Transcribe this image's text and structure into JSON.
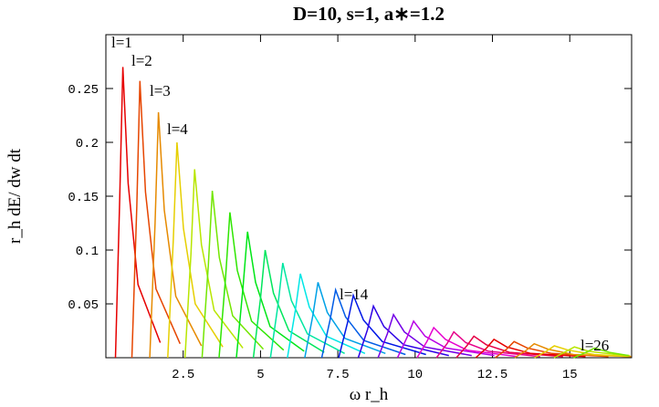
{
  "chart_data": {
    "type": "line",
    "title": "D=10, s=1, a∗=1.2",
    "x_label": "ω r_h",
    "y_label": "r_h dE/ dw dt",
    "xlim": [
      0,
      17
    ],
    "ylim": [
      0,
      0.3
    ],
    "xticks": [
      2.5,
      5,
      7.5,
      10,
      12.5,
      15
    ],
    "yticks": [
      0.05,
      0.1,
      0.15,
      0.2,
      0.25
    ],
    "grid": false,
    "annotations": [
      "l=1",
      "l=2",
      "l=3",
      "l=4",
      "l=14",
      "l=26"
    ],
    "series": [
      {
        "color": "#e60000",
        "x": [
          0.31,
          0.45,
          0.55,
          0.72,
          1.04,
          1.76
        ],
        "values": [
          0,
          0.149,
          0.27,
          0.162,
          0.068,
          0.014
        ]
      },
      {
        "color": "#e64500",
        "x": [
          0.84,
          1.0,
          1.1,
          1.28,
          1.62,
          2.4
        ],
        "values": [
          0,
          0.141,
          0.257,
          0.154,
          0.064,
          0.013
        ]
      },
      {
        "color": "#e68a00",
        "x": [
          1.42,
          1.59,
          1.7,
          1.89,
          2.26,
          3.09
        ],
        "values": [
          0,
          0.125,
          0.228,
          0.137,
          0.057,
          0.011
        ]
      },
      {
        "color": "#e6cf00",
        "x": [
          2.0,
          2.18,
          2.3,
          2.51,
          2.89,
          3.78
        ],
        "values": [
          0,
          0.11,
          0.2,
          0.12,
          0.05,
          0.01
        ]
      },
      {
        "color": "#b8e600",
        "x": [
          2.56,
          2.75,
          2.87,
          3.09,
          3.5,
          4.43
        ],
        "values": [
          0,
          0.096,
          0.175,
          0.105,
          0.044,
          0.009
        ]
      },
      {
        "color": "#73e600",
        "x": [
          3.11,
          3.31,
          3.44,
          3.67,
          4.1,
          5.09
        ],
        "values": [
          0,
          0.085,
          0.155,
          0.093,
          0.039,
          0.008
        ]
      },
      {
        "color": "#2ee600",
        "x": [
          3.66,
          3.87,
          4.01,
          4.25,
          4.71,
          5.75
        ],
        "values": [
          0,
          0.074,
          0.135,
          0.081,
          0.034,
          0.007
        ]
      },
      {
        "color": "#00e617",
        "x": [
          4.22,
          4.43,
          4.58,
          4.84,
          5.31,
          6.41
        ],
        "values": [
          0,
          0.064,
          0.117,
          0.07,
          0.029,
          0.006
        ]
      },
      {
        "color": "#00e65c",
        "x": [
          4.77,
          5.0,
          5.15,
          5.42,
          5.92,
          7.06
        ],
        "values": [
          0,
          0.055,
          0.1,
          0.06,
          0.025,
          0.005
        ]
      },
      {
        "color": "#00e6a1",
        "x": [
          5.32,
          5.56,
          5.72,
          6.0,
          6.52,
          7.72
        ],
        "values": [
          0,
          0.048,
          0.088,
          0.053,
          0.022,
          0.004
        ]
      },
      {
        "color": "#00e6e6",
        "x": [
          5.87,
          6.12,
          6.29,
          6.58,
          7.13,
          8.38
        ],
        "values": [
          0,
          0.043,
          0.078,
          0.047,
          0.02,
          0.004
        ]
      },
      {
        "color": "#00a1e6",
        "x": [
          6.43,
          6.69,
          6.86,
          7.16,
          7.73,
          9.04
        ],
        "values": [
          0,
          0.039,
          0.07,
          0.042,
          0.018,
          0.004
        ]
      },
      {
        "color": "#005ce6",
        "x": [
          6.98,
          7.25,
          7.43,
          7.75,
          8.34,
          9.69
        ],
        "values": [
          0,
          0.035,
          0.063,
          0.038,
          0.016,
          0.003
        ]
      },
      {
        "color": "#0017e6",
        "x": [
          7.53,
          7.81,
          8.0,
          8.33,
          8.94,
          10.35
        ],
        "values": [
          0,
          0.032,
          0.058,
          0.035,
          0.015,
          0.003
        ]
      },
      {
        "color": "#2e00e6",
        "x": [
          8.16,
          8.46,
          8.65,
          8.99,
          9.63,
          11.09
        ],
        "values": [
          0,
          0.026,
          0.048,
          0.029,
          0.012,
          0.002
        ]
      },
      {
        "color": "#7300e6",
        "x": [
          8.8,
          9.1,
          9.3,
          9.65,
          10.31,
          11.83
        ],
        "values": [
          0,
          0.022,
          0.04,
          0.024,
          0.01,
          0.002
        ]
      },
      {
        "color": "#b800e6",
        "x": [
          9.43,
          9.74,
          9.95,
          10.32,
          11.0,
          12.56
        ],
        "values": [
          0,
          0.019,
          0.034,
          0.02,
          0.009,
          0.002
        ]
      },
      {
        "color": "#e600cf",
        "x": [
          10.06,
          10.38,
          10.6,
          10.98,
          11.68,
          13.3
        ],
        "values": [
          0,
          0.015,
          0.028,
          0.017,
          0.007,
          0.001
        ]
      },
      {
        "color": "#e6008a",
        "x": [
          10.69,
          11.03,
          11.25,
          11.64,
          12.37,
          14.04
        ],
        "values": [
          0,
          0.013,
          0.024,
          0.014,
          0.006,
          0.001
        ]
      },
      {
        "color": "#e60045",
        "x": [
          11.33,
          11.67,
          11.9,
          12.3,
          13.05,
          14.78
        ],
        "values": [
          0,
          0.011,
          0.02,
          0.012,
          0.005,
          0.001
        ]
      },
      {
        "color": "#e60000",
        "x": [
          11.96,
          12.31,
          12.55,
          12.96,
          13.74,
          15.51
        ],
        "values": [
          0,
          0.009,
          0.017,
          0.01,
          0.004,
          0.001
        ]
      },
      {
        "color": "#e64500",
        "x": [
          12.59,
          12.96,
          13.2,
          13.63,
          14.42,
          16.25
        ],
        "values": [
          0,
          0.008,
          0.015,
          0.009,
          0.004,
          0.001
        ]
      },
      {
        "color": "#e68a00",
        "x": [
          13.22,
          13.6,
          13.85,
          14.29,
          15.11,
          16.99
        ],
        "values": [
          0,
          0.007,
          0.013,
          0.008,
          0.003,
          0.001
        ]
      },
      {
        "color": "#e6cf00",
        "x": [
          13.86,
          14.24,
          14.5,
          14.95,
          15.79,
          16.9
        ],
        "values": [
          0,
          0.006,
          0.011,
          0.007,
          0.003,
          0.001
        ]
      },
      {
        "color": "#b8e600",
        "x": [
          14.49,
          14.89,
          15.15,
          15.61,
          16.48,
          16.95
        ],
        "values": [
          0,
          0.006,
          0.01,
          0.006,
          0.003,
          0.002
        ]
      },
      {
        "color": "#73e600",
        "x": [
          15.12,
          15.53,
          15.8,
          16.28,
          16.9
        ],
        "values": [
          0,
          0.005,
          0.009,
          0.005,
          0.002
        ]
      }
    ]
  }
}
